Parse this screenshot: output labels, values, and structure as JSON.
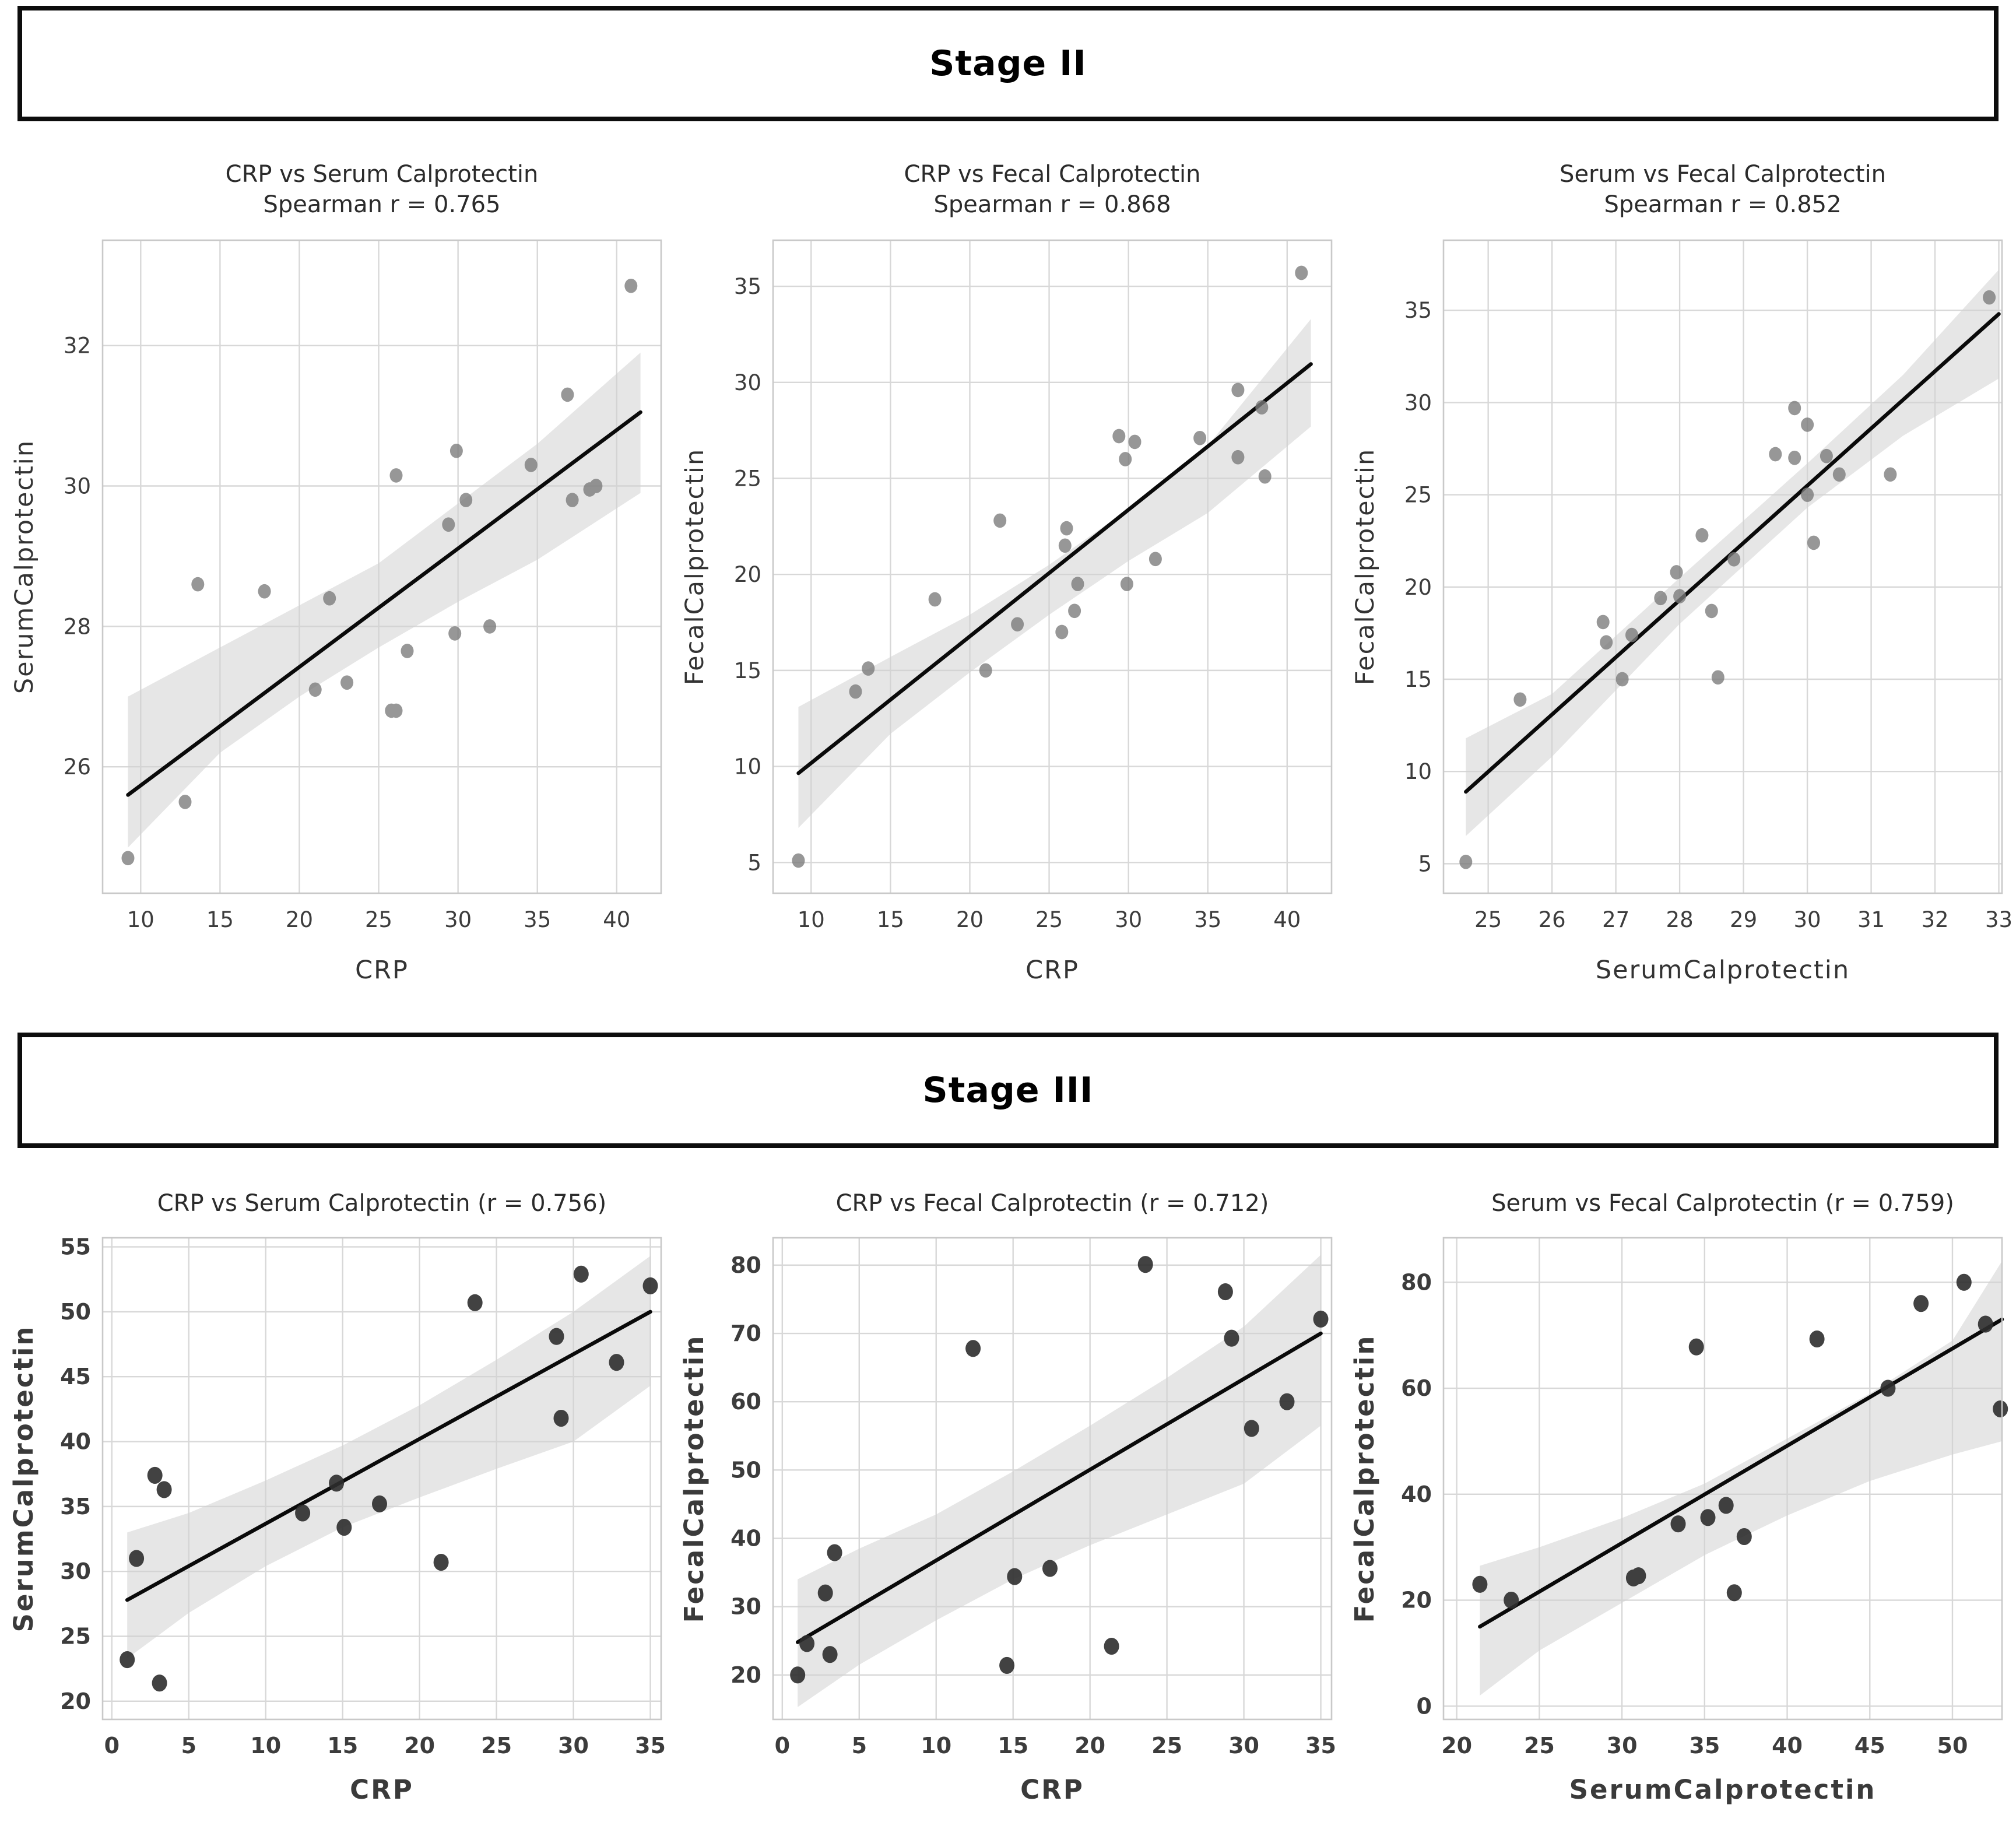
{
  "figure": {
    "background": "#ffffff",
    "box_border_color": "#0d0d0d",
    "grid_color": "#d8d8d8",
    "frame_color": "#c9c9c9",
    "band_color": "#d2d2d2",
    "line_color": "#0a0a0a"
  },
  "sections": [
    {
      "header": "Stage II"
    },
    {
      "header": "Stage III"
    }
  ],
  "chart_data": [
    {
      "type": "scatter",
      "section": "Stage II",
      "title": "CRP vs Serum Calprotectin",
      "subtitle": "Spearman r = 0.765",
      "spearman_r": 0.765,
      "xlabel": "CRP",
      "ylabel": "SerumCalprotectin",
      "xlim": [
        7.6,
        42.8
      ],
      "ylim": [
        24.2,
        33.5
      ],
      "xticks": [
        10,
        15,
        20,
        25,
        30,
        35,
        40
      ],
      "yticks": [
        26,
        28,
        30,
        32
      ],
      "grid": true,
      "legend": "none",
      "style": {
        "point_color": "#7a7a7a",
        "point_opacity": 0.78,
        "point_radius": 11,
        "bold_text": false
      },
      "points": [
        [
          9.2,
          24.7
        ],
        [
          12.8,
          25.5
        ],
        [
          13.6,
          28.6
        ],
        [
          17.8,
          28.5
        ],
        [
          21.0,
          27.1
        ],
        [
          21.9,
          28.4
        ],
        [
          23.0,
          27.2
        ],
        [
          25.8,
          26.8
        ],
        [
          26.1,
          26.8
        ],
        [
          26.1,
          30.15
        ],
        [
          26.8,
          27.65
        ],
        [
          29.4,
          29.45
        ],
        [
          29.8,
          27.9
        ],
        [
          29.9,
          30.5
        ],
        [
          30.5,
          29.8
        ],
        [
          32.0,
          28.0
        ],
        [
          34.6,
          30.3
        ],
        [
          36.9,
          31.3
        ],
        [
          37.2,
          29.8
        ],
        [
          38.3,
          29.95
        ],
        [
          38.7,
          30.0
        ],
        [
          40.9,
          32.85
        ]
      ],
      "regression": [
        [
          9.2,
          25.6
        ],
        [
          41.5,
          31.05
        ]
      ],
      "band": [
        [
          9.2,
          24.85,
          27.0
        ],
        [
          15,
          26.2,
          27.7
        ],
        [
          20,
          27.0,
          28.3
        ],
        [
          25,
          27.7,
          28.9
        ],
        [
          30,
          28.35,
          29.75
        ],
        [
          35,
          28.95,
          30.6
        ],
        [
          41.5,
          29.9,
          31.9
        ]
      ]
    },
    {
      "type": "scatter",
      "section": "Stage II",
      "title": "CRP vs Fecal Calprotectin",
      "subtitle": "Spearman r = 0.868",
      "spearman_r": 0.868,
      "xlabel": "CRP",
      "ylabel": "FecalCalprotectin",
      "xlim": [
        7.6,
        42.8
      ],
      "ylim": [
        3.4,
        37.4
      ],
      "xticks": [
        10,
        15,
        20,
        25,
        30,
        35,
        40
      ],
      "yticks": [
        5,
        10,
        15,
        20,
        25,
        30,
        35
      ],
      "grid": true,
      "legend": "none",
      "style": {
        "point_color": "#7a7a7a",
        "point_opacity": 0.78,
        "point_radius": 11,
        "bold_text": false
      },
      "points": [
        [
          9.2,
          5.1
        ],
        [
          12.8,
          13.9
        ],
        [
          13.6,
          15.1
        ],
        [
          17.8,
          18.7
        ],
        [
          21.0,
          15.0
        ],
        [
          21.9,
          22.8
        ],
        [
          23.0,
          17.4
        ],
        [
          25.8,
          17.0
        ],
        [
          26.0,
          21.5
        ],
        [
          26.1,
          22.4
        ],
        [
          26.6,
          18.1
        ],
        [
          26.8,
          19.5
        ],
        [
          29.4,
          27.2
        ],
        [
          29.8,
          26.0
        ],
        [
          29.9,
          19.5
        ],
        [
          30.4,
          26.9
        ],
        [
          31.7,
          20.8
        ],
        [
          34.5,
          27.1
        ],
        [
          36.9,
          29.6
        ],
        [
          36.9,
          26.1
        ],
        [
          38.4,
          28.7
        ],
        [
          38.6,
          25.1
        ],
        [
          40.9,
          35.7
        ]
      ],
      "regression": [
        [
          9.2,
          9.65
        ],
        [
          41.5,
          30.95
        ]
      ],
      "band": [
        [
          9.2,
          6.8,
          13.1
        ],
        [
          15,
          11.7,
          15.7
        ],
        [
          20,
          14.9,
          17.9
        ],
        [
          25,
          17.9,
          20.5
        ],
        [
          30,
          20.7,
          23.4
        ],
        [
          35,
          23.2,
          26.7
        ],
        [
          41.5,
          27.7,
          33.3
        ]
      ]
    },
    {
      "type": "scatter",
      "section": "Stage II",
      "title": "Serum vs Fecal Calprotectin",
      "subtitle": "Spearman r = 0.852",
      "spearman_r": 0.852,
      "xlabel": "SerumCalprotectin",
      "ylabel": "FecalCalprotectin",
      "xlim": [
        24.3,
        33.05
      ],
      "ylim": [
        3.4,
        38.8
      ],
      "xticks": [
        25,
        26,
        27,
        28,
        29,
        30,
        31,
        32,
        33
      ],
      "yticks": [
        5,
        10,
        15,
        20,
        25,
        30,
        35
      ],
      "grid": true,
      "legend": "none",
      "style": {
        "point_color": "#7a7a7a",
        "point_opacity": 0.78,
        "point_radius": 11,
        "bold_text": false
      },
      "points": [
        [
          24.65,
          5.1
        ],
        [
          25.5,
          13.9
        ],
        [
          26.8,
          18.1
        ],
        [
          26.85,
          17.0
        ],
        [
          27.1,
          15.0
        ],
        [
          27.25,
          17.4
        ],
        [
          27.7,
          19.4
        ],
        [
          27.95,
          20.8
        ],
        [
          28.0,
          19.5
        ],
        [
          28.35,
          22.8
        ],
        [
          28.5,
          18.7
        ],
        [
          28.6,
          15.1
        ],
        [
          28.85,
          21.5
        ],
        [
          29.5,
          27.2
        ],
        [
          29.8,
          29.7
        ],
        [
          29.8,
          27.0
        ],
        [
          30.0,
          28.8
        ],
        [
          30.0,
          25.0
        ],
        [
          30.1,
          22.4
        ],
        [
          30.3,
          27.1
        ],
        [
          30.5,
          26.1
        ],
        [
          31.3,
          26.1
        ],
        [
          32.85,
          35.7
        ]
      ],
      "regression": [
        [
          24.65,
          8.9
        ],
        [
          33.0,
          34.8
        ]
      ],
      "band": [
        [
          24.65,
          6.5,
          11.8
        ],
        [
          26,
          10.8,
          14.2
        ],
        [
          28,
          18.0,
          20.5
        ],
        [
          30,
          24.3,
          26.7
        ],
        [
          31.5,
          28.2,
          31.5
        ],
        [
          33,
          31.3,
          37.2
        ]
      ]
    },
    {
      "type": "scatter",
      "section": "Stage III",
      "title": "CRP vs Serum Calprotectin (r = 0.756)",
      "subtitle": "",
      "spearman_r": 0.756,
      "xlabel": "CRP",
      "ylabel": "SerumCalprotectin",
      "xlim": [
        -0.6,
        35.7
      ],
      "ylim": [
        18.6,
        55.7
      ],
      "xticks": [
        0,
        5,
        10,
        15,
        20,
        25,
        30,
        35
      ],
      "yticks": [
        20,
        25,
        30,
        35,
        40,
        45,
        50,
        55
      ],
      "grid": true,
      "legend": "none",
      "style": {
        "point_color": "#2e2e2e",
        "point_opacity": 0.9,
        "point_radius": 13,
        "bold_text": true
      },
      "points": [
        [
          1.0,
          23.2
        ],
        [
          1.6,
          31.0
        ],
        [
          2.8,
          37.4
        ],
        [
          3.1,
          21.4
        ],
        [
          3.4,
          36.3
        ],
        [
          12.4,
          34.5
        ],
        [
          14.6,
          36.8
        ],
        [
          15.1,
          33.4
        ],
        [
          17.4,
          35.2
        ],
        [
          21.4,
          30.7
        ],
        [
          23.6,
          50.7
        ],
        [
          28.9,
          48.1
        ],
        [
          29.2,
          41.8
        ],
        [
          30.5,
          52.9
        ],
        [
          32.8,
          46.1
        ],
        [
          35.0,
          52.0
        ]
      ],
      "regression": [
        [
          1.0,
          27.8
        ],
        [
          35.0,
          50.0
        ]
      ],
      "band": [
        [
          1,
          23.3,
          33.0
        ],
        [
          5,
          26.8,
          34.5
        ],
        [
          10,
          30.4,
          37.0
        ],
        [
          15,
          33.4,
          39.7
        ],
        [
          20,
          35.7,
          42.8
        ],
        [
          25,
          37.9,
          46.3
        ],
        [
          30,
          40.0,
          50.0
        ],
        [
          35,
          44.3,
          54.3
        ]
      ]
    },
    {
      "type": "scatter",
      "section": "Stage III",
      "title": "CRP vs Fecal Calprotectin (r = 0.712)",
      "subtitle": "",
      "spearman_r": 0.712,
      "xlabel": "CRP",
      "ylabel": "FecalCalprotectin",
      "xlim": [
        -0.6,
        35.7
      ],
      "ylim": [
        13.5,
        84.0
      ],
      "xticks": [
        0,
        5,
        10,
        15,
        20,
        25,
        30,
        35
      ],
      "yticks": [
        20,
        30,
        40,
        50,
        60,
        70,
        80
      ],
      "grid": true,
      "legend": "none",
      "style": {
        "point_color": "#2e2e2e",
        "point_opacity": 0.9,
        "point_radius": 13,
        "bold_text": true
      },
      "points": [
        [
          1.0,
          20.0
        ],
        [
          1.6,
          24.6
        ],
        [
          2.8,
          32.0
        ],
        [
          3.1,
          23.0
        ],
        [
          3.4,
          37.9
        ],
        [
          12.4,
          67.8
        ],
        [
          14.6,
          21.4
        ],
        [
          15.1,
          34.4
        ],
        [
          17.4,
          35.6
        ],
        [
          21.4,
          24.2
        ],
        [
          23.6,
          80.1
        ],
        [
          28.8,
          76.1
        ],
        [
          29.2,
          69.3
        ],
        [
          30.5,
          56.1
        ],
        [
          32.8,
          60.0
        ],
        [
          35.0,
          72.1
        ]
      ],
      "regression": [
        [
          1.0,
          24.8
        ],
        [
          35.0,
          70.0
        ]
      ],
      "band": [
        [
          1,
          15.3,
          34.0
        ],
        [
          5,
          21.5,
          38.5
        ],
        [
          10,
          28.0,
          43.5
        ],
        [
          15,
          34.0,
          49.8
        ],
        [
          20,
          39.0,
          56.5
        ],
        [
          25,
          43.5,
          63.5
        ],
        [
          30,
          48.0,
          71.0
        ],
        [
          35,
          56.5,
          81.5
        ]
      ]
    },
    {
      "type": "scatter",
      "section": "Stage III",
      "title": "Serum vs Fecal Calprotectin (r = 0.759)",
      "subtitle": "",
      "spearman_r": 0.759,
      "xlabel": "SerumCalprotectin",
      "ylabel": "FecalCalprotectin",
      "xlim": [
        19.2,
        53.0
      ],
      "ylim": [
        -2.5,
        88.4
      ],
      "xticks": [
        20,
        25,
        30,
        35,
        40,
        45,
        50
      ],
      "yticks": [
        0,
        20,
        40,
        60,
        80
      ],
      "grid": true,
      "legend": "none",
      "style": {
        "point_color": "#2e2e2e",
        "point_opacity": 0.9,
        "point_radius": 13,
        "bold_text": true
      },
      "points": [
        [
          21.4,
          23.0
        ],
        [
          23.3,
          20.0
        ],
        [
          30.7,
          24.2
        ],
        [
          31.0,
          24.6
        ],
        [
          33.4,
          34.4
        ],
        [
          34.5,
          67.8
        ],
        [
          35.2,
          35.6
        ],
        [
          36.3,
          37.9
        ],
        [
          36.8,
          21.4
        ],
        [
          37.4,
          32.0
        ],
        [
          41.8,
          69.3
        ],
        [
          46.1,
          60.0
        ],
        [
          48.1,
          76.0
        ],
        [
          50.7,
          80.0
        ],
        [
          52.0,
          72.1
        ],
        [
          52.9,
          56.1
        ]
      ],
      "regression": [
        [
          21.4,
          15.0
        ],
        [
          53.0,
          73.0
        ]
      ],
      "band": [
        [
          21.4,
          2.0,
          26.5
        ],
        [
          25,
          10.5,
          30.0
        ],
        [
          30,
          19.5,
          35.5
        ],
        [
          35,
          28.5,
          42.0
        ],
        [
          40,
          36.0,
          50.5
        ],
        [
          45,
          42.5,
          59.0
        ],
        [
          50,
          47.5,
          69.0
        ],
        [
          53,
          50.0,
          84.0
        ]
      ]
    }
  ]
}
